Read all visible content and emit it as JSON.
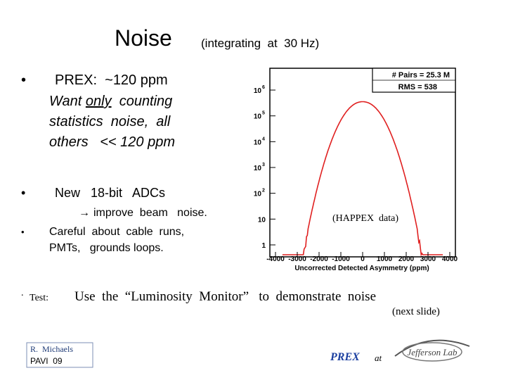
{
  "slide": {
    "title": "Noise",
    "subtitle": "(integrating  at  30 Hz)",
    "bullets": [
      {
        "marker": "•",
        "text": "PREX:  ~120 ppm"
      },
      {
        "marker": "•",
        "text": "New   18-bit   ADCs"
      },
      {
        "marker": "•",
        "text": "Careful  about  cable  runs,"
      }
    ],
    "prex_detail": {
      "before": "Want ",
      "underlined": "only",
      "after": "  counting",
      "line2": "statistics  noise,  all",
      "line3": "others   << 120 ppm"
    },
    "adc_detail": {
      "arrow": "→",
      "text": "improve  beam   noise."
    },
    "careful_line2": "PMTs,   grounds loops.",
    "test": {
      "marker": ".",
      "label": "Test:",
      "text": "Use  the  “Luminosity  Monitor”   to  demonstrate  noise",
      "note": "(next slide)"
    },
    "footer": {
      "author": "R.  Michaels",
      "event": "PAVI  09",
      "prex": "PREX",
      "at": "at",
      "logo": "Jefferson Lab"
    },
    "histogram": {
      "stats": [
        "# Pairs = 25.3 M",
        "RMS = 538"
      ],
      "annotation": "(HAPPEX  data)",
      "x_title": "Uncorrected Detected Asymmetry (ppm)",
      "x_labels": [
        "-4000",
        "-3000",
        "-2000",
        "-1000",
        "0",
        "1000",
        "2000",
        "3000",
        "4000"
      ],
      "y_labels": [
        {
          "base": "10",
          "exp": "6"
        },
        {
          "base": "10",
          "exp": "5"
        },
        {
          "base": "10",
          "exp": "4"
        },
        {
          "base": "10",
          "exp": "3"
        },
        {
          "base": "10",
          "exp": "2"
        },
        "10",
        "1"
      ]
    }
  }
}
